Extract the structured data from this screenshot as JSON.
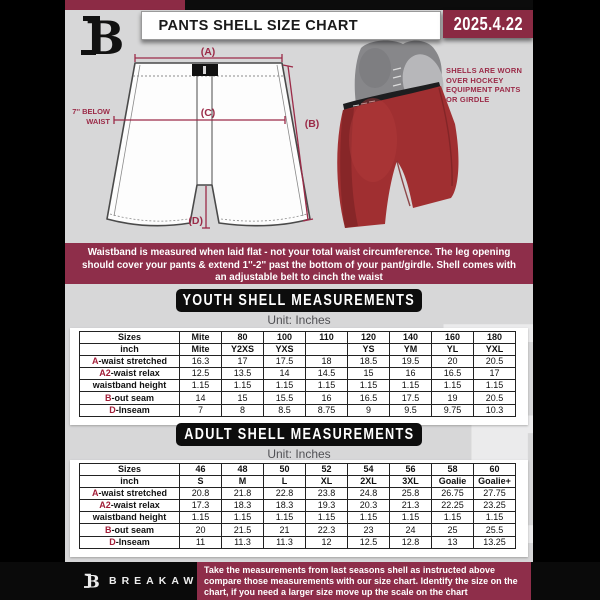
{
  "header": {
    "title": "PANTS SHELL SIZE CHART",
    "date": "2025.4.22"
  },
  "diagram": {
    "label_a": "(A)",
    "label_b": "(B)",
    "label_c": "(C)",
    "label_d": "(D)",
    "note_line1": "7'' BELOW",
    "note_line2": "WAIST"
  },
  "photo": {
    "caption": "SHELLS ARE WORN\nOVER HOCKEY\nEQUIPMENT PANTS\nOR GIRDLE"
  },
  "banner": {
    "text": "Waistband is measured when laid flat - not your total waist circumference. The leg opening should cover your pants & extend 1''-2'' past the bottom of your pant/girdle. Shell comes with an adjustable belt to cinch the waist"
  },
  "youth": {
    "heading": "YOUTH SHELL MEASUREMENTS",
    "unit": "Unit: Inches",
    "rows": [
      {
        "prefix": "",
        "label": "Sizes",
        "bold": true,
        "values": [
          "Mite",
          "80",
          "100",
          "110",
          "120",
          "140",
          "160",
          "180"
        ]
      },
      {
        "prefix": "",
        "label": "inch",
        "bold": true,
        "values": [
          "Mite",
          "Y2XS",
          "YXS",
          "",
          "YS",
          "YM",
          "YL",
          "YXL"
        ]
      },
      {
        "prefix": "A",
        "label": "-waist stretched",
        "values": [
          "16.3",
          "17",
          "17.5",
          "18",
          "18.5",
          "19.5",
          "20",
          "20.5"
        ]
      },
      {
        "prefix": "A2",
        "label": "-waist relax",
        "values": [
          "12.5",
          "13.5",
          "14",
          "14.5",
          "15",
          "16",
          "16.5",
          "17"
        ]
      },
      {
        "prefix": "",
        "label": "waistband height",
        "values": [
          "1.15",
          "1.15",
          "1.15",
          "1.15",
          "1.15",
          "1.15",
          "1.15",
          "1.15"
        ]
      },
      {
        "prefix": "B",
        "label": "-out seam",
        "values": [
          "14",
          "15",
          "15.5",
          "16",
          "16.5",
          "17.5",
          "19",
          "20.5"
        ]
      },
      {
        "prefix": "D",
        "label": "-Inseam",
        "values": [
          "7",
          "8",
          "8.5",
          "8.75",
          "9",
          "9.5",
          "9.75",
          "10.3"
        ]
      }
    ]
  },
  "adult": {
    "heading": "ADULT SHELL MEASUREMENTS",
    "unit": "Unit: Inches",
    "rows": [
      {
        "prefix": "",
        "label": "Sizes",
        "bold": true,
        "values": [
          "46",
          "48",
          "50",
          "52",
          "54",
          "56",
          "58",
          "60"
        ]
      },
      {
        "prefix": "",
        "label": "inch",
        "bold": true,
        "values": [
          "S",
          "M",
          "L",
          "XL",
          "2XL",
          "3XL",
          "Goalie",
          "Goalie+"
        ]
      },
      {
        "prefix": "A",
        "label": "-waist stretched",
        "values": [
          "20.8",
          "21.8",
          "22.8",
          "23.8",
          "24.8",
          "25.8",
          "26.75",
          "27.75"
        ]
      },
      {
        "prefix": "A2",
        "label": "-waist relax",
        "values": [
          "17.3",
          "18.3",
          "18.3",
          "19.3",
          "20.3",
          "21.3",
          "22.25",
          "23.25"
        ]
      },
      {
        "prefix": "",
        "label": "waistband height",
        "values": [
          "1.15",
          "1.15",
          "1.15",
          "1.15",
          "1.15",
          "1.15",
          "1.15",
          "1.15"
        ]
      },
      {
        "prefix": "B",
        "label": "-out seam",
        "values": [
          "20",
          "21.5",
          "21",
          "22.3",
          "23",
          "24",
          "25",
          "25.5"
        ]
      },
      {
        "prefix": "D",
        "label": "-Inseam",
        "values": [
          "11",
          "11.3",
          "11.3",
          "12",
          "12.5",
          "12.8",
          "13",
          "13.25"
        ]
      }
    ]
  },
  "footer": {
    "brand": "BREAKAWAY",
    "watermark_letter": "B",
    "note": "Take the measurements from last seasons shell as instructed above compare those measurements with our size chart. Identify the size on the chart, if you need a larger size move up the scale on the chart"
  },
  "colors": {
    "maroon": "#8e2e4a",
    "maroon_dark": "#8a2a43",
    "accent_red": "#a11e38",
    "background_gray": "#d7d7d8",
    "shell_red": "#a02f31"
  }
}
